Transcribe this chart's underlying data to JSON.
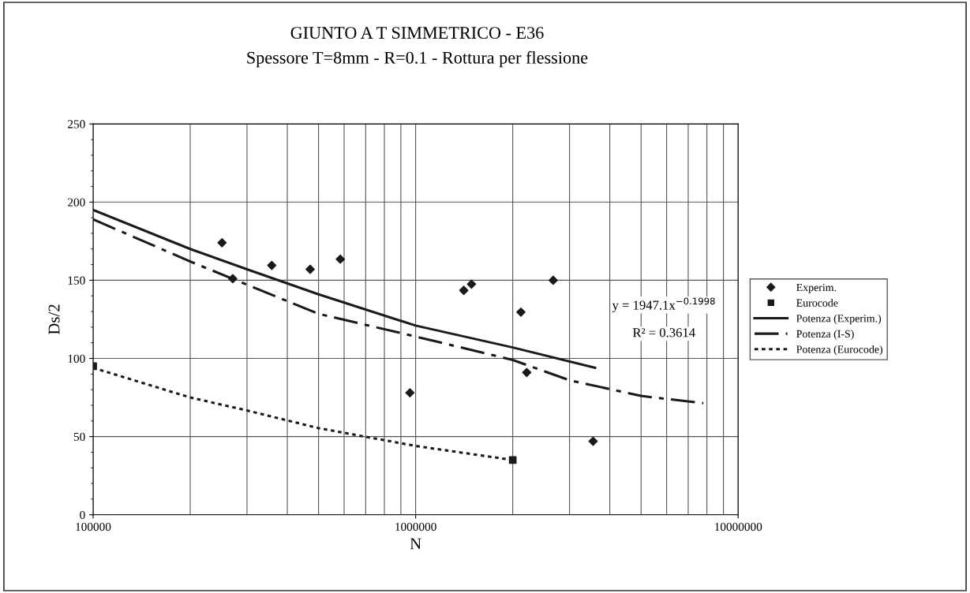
{
  "chart_data": {
    "type": "scatter",
    "title": "GIUNTO A T SIMMETRICO - E36",
    "subtitle": "Spessore T=8mm - R=0.1 - Rottura per flessione",
    "xlabel": "N",
    "ylabel": "Ds/2",
    "log": "x",
    "xlim": [
      100000,
      10000000
    ],
    "xticks": [
      100000,
      1000000,
      10000000
    ],
    "ylim": [
      0,
      250
    ],
    "yticks": [
      0,
      50,
      100,
      150,
      200,
      250
    ],
    "grid": true,
    "legend": "right",
    "annotations": [
      "y = 1947.1x$^{−0.1998}$",
      "R² = 0.3614"
    ],
    "series": [
      {
        "name": "Experim.",
        "marker": "diamond",
        "color": "#1a1a1a",
        "x": [
          251000,
          271000,
          358000,
          471000,
          584000,
          960000,
          1410000,
          1490000,
          2120000,
          2210000,
          2670000,
          3550000
        ],
        "values": [
          174,
          151,
          159.5,
          157,
          163.5,
          78,
          143.5,
          147.5,
          129.6,
          91,
          150,
          47
        ]
      },
      {
        "name": "Eurocode",
        "marker": "square",
        "color": "#1a1a1a",
        "x": [
          100000,
          2000000
        ],
        "values": [
          95,
          35
        ]
      },
      {
        "name": "Potenza (Experim.)",
        "type": "line",
        "line_style": "solid",
        "color": "#1a1a1a",
        "x": [
          100000,
          200000,
          300000,
          500000,
          1000000,
          2000000,
          3600000
        ],
        "values": [
          195,
          170,
          157,
          141,
          121,
          107,
          94
        ]
      },
      {
        "name": "Potenza (I-S)",
        "type": "line",
        "line_style": "dashdot",
        "color": "#1a1a1a",
        "x": [
          100000,
          200000,
          500000,
          1000000,
          2000000,
          3000000,
          5000000,
          7800000
        ],
        "values": [
          189,
          162,
          128.5,
          114,
          99,
          86,
          76,
          71.4
        ]
      },
      {
        "name": "Potenza (Eurocode)",
        "type": "line",
        "line_style": "dotted",
        "color": "#1a1a1a",
        "x": [
          100000,
          200000,
          300000,
          500000,
          1000000,
          2000000
        ],
        "values": [
          94,
          75,
          66.7,
          55.4,
          44,
          35
        ]
      }
    ]
  }
}
